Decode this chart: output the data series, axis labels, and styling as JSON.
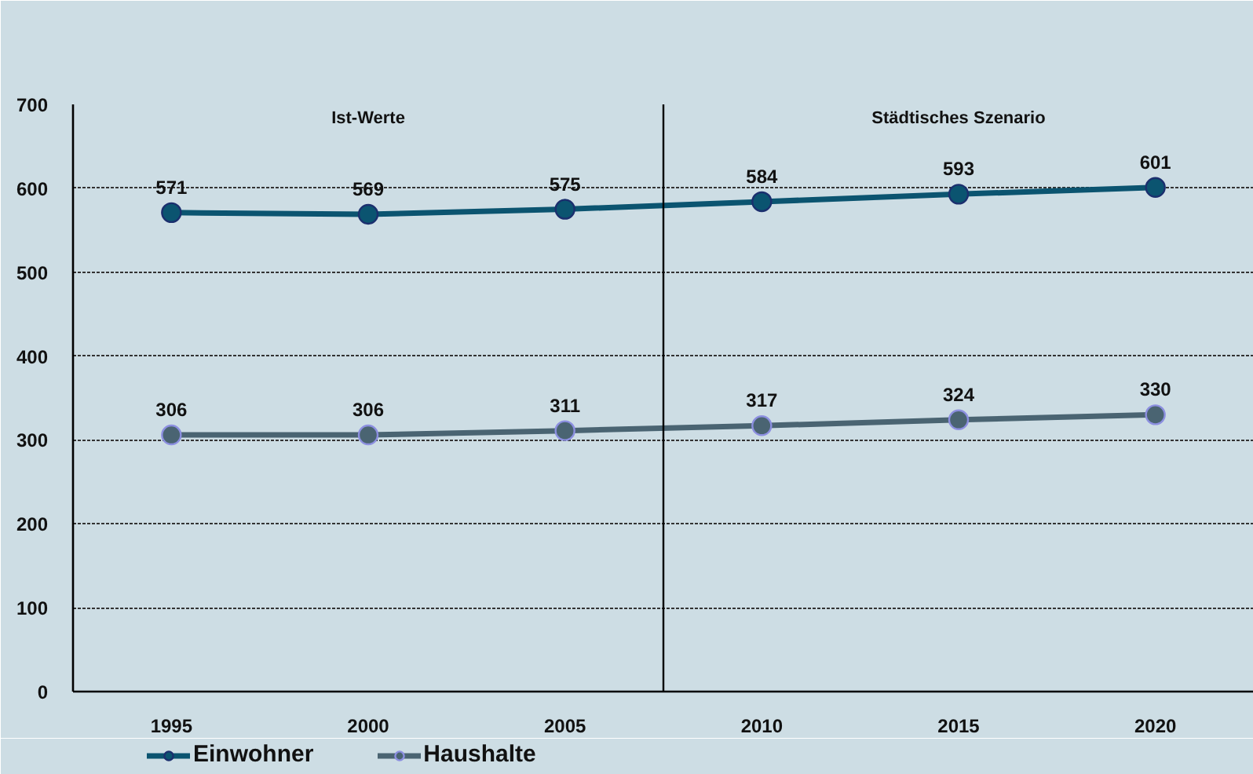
{
  "chart_data": {
    "type": "line",
    "x": [
      1995,
      2000,
      2005,
      2010,
      2015,
      2020
    ],
    "xlim": [
      1992.5,
      2022.5
    ],
    "xticks": [
      1995,
      2000,
      2005,
      2010,
      2015,
      2020
    ],
    "ylim": [
      0,
      700
    ],
    "yticks": [
      0,
      100,
      200,
      300,
      400,
      500,
      600,
      700
    ],
    "series": [
      {
        "name": "Einwohner",
        "color": "#0b5470",
        "values": [
          571,
          569,
          575,
          584,
          593,
          601
        ]
      },
      {
        "name": "Haushalte",
        "color": "#4a6472",
        "values": [
          306,
          306,
          311,
          317,
          324,
          330
        ]
      }
    ],
    "data_labels": true,
    "ref_lines": [
      {
        "axis": "x",
        "value": 2007.5,
        "color": "#000000"
      }
    ],
    "annotations": [
      "Ist-Werte",
      "Städtisches Szenario"
    ],
    "grid": "y",
    "legend": "bottom",
    "marker": "circle",
    "line_style": "solid"
  }
}
